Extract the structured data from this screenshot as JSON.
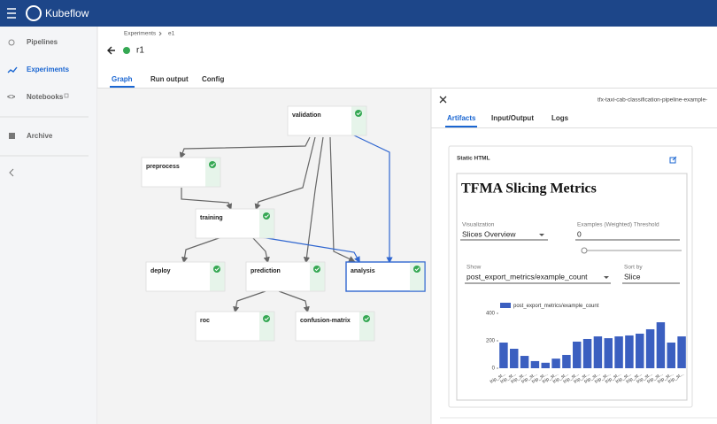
{
  "header": {
    "title": "Kubeflow"
  },
  "nav": [
    "Pipelines",
    "Experiments",
    "Notebooks",
    "Archive"
  ],
  "breadcrumb": {
    "parent": "Experiments",
    "current": "e1"
  },
  "run": {
    "name": "r1"
  },
  "tabs": [
    "Graph",
    "Run output",
    "Config"
  ],
  "nodes": [
    {
      "label": "validation"
    },
    {
      "label": "preprocess"
    },
    {
      "label": "training"
    },
    {
      "label": "deploy"
    },
    {
      "label": "prediction"
    },
    {
      "label": "analysis"
    },
    {
      "label": "roc"
    },
    {
      "label": "confusion-matrix"
    }
  ],
  "panel": {
    "title": "tfx-taxi-cab-classification-pipeline-example-",
    "tabs": [
      "Artifacts",
      "Input/Output",
      "Logs"
    ]
  },
  "card": {
    "title": "Static HTML",
    "heading": "TFMA Slicing Metrics",
    "visualization": {
      "label": "Visualization",
      "value": "Slices Overview"
    },
    "threshold": {
      "label": "Examples (Weighted) Threshold",
      "value": "0"
    },
    "show": {
      "label": "Show",
      "value": "post_export_metrics/example_count"
    },
    "sort": {
      "label": "Sort by",
      "value": "Slice"
    }
  },
  "chart_data": {
    "type": "bar",
    "categories": [
      "trip_st...",
      "trip_st...",
      "trip_st...",
      "trip_st...",
      "trip_st...",
      "trip_st...",
      "trip_st...",
      "trip_st...",
      "trip_st...",
      "trip_st...",
      "trip_st...",
      "trip_st...",
      "trip_st...",
      "trip_st...",
      "trip_st...",
      "trip_st...",
      "trip_st...",
      "trip_st..."
    ],
    "series": [
      {
        "name": "post_export_metrics/example_count",
        "color": "#3b5fc0",
        "values": [
          187,
          142,
          90,
          52,
          40,
          70,
          97,
          194,
          213,
          232,
          219,
          232,
          239,
          252,
          284,
          335,
          187,
          232
        ]
      }
    ],
    "ylim": [
      0,
      400
    ],
    "yticks": [
      0,
      200,
      400
    ],
    "legend": "top-left"
  }
}
